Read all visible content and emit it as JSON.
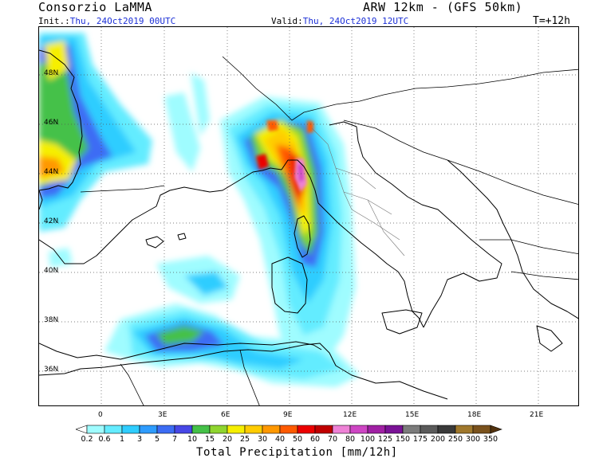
{
  "header": {
    "title_left": "Consorzio LaMMA",
    "title_right": "ARW 12km - (GFS 50km)",
    "init_prefix": "Init.:",
    "init_value": "Thu, 24Oct2019 00UTC",
    "valid_prefix": "Valid:",
    "valid_value": "Thu, 24Oct2019 12UTC",
    "step": "T=+12h"
  },
  "map": {
    "lat_labels": [
      "48N",
      "46N",
      "44N",
      "42N",
      "40N",
      "38N",
      "36N"
    ],
    "lon_labels": [
      "0",
      "3E",
      "6E",
      "9E",
      "12E",
      "15E",
      "18E",
      "21E"
    ]
  },
  "colorbar": {
    "title": "Total Precipitation [mm/12h]",
    "levels": [
      "0.2",
      "0.6",
      "1",
      "3",
      "5",
      "7",
      "10",
      "15",
      "20",
      "25",
      "30",
      "40",
      "50",
      "60",
      "70",
      "80",
      "100",
      "125",
      "150",
      "175",
      "200",
      "250",
      "300",
      "350"
    ],
    "colors": [
      "#ffffff",
      "#9ffcff",
      "#64ecff",
      "#2fcdff",
      "#2e9cfe",
      "#3c6cf4",
      "#4747e6",
      "#45c148",
      "#8fd52f",
      "#f6ef00",
      "#ffcc00",
      "#ff9800",
      "#ff5a00",
      "#ec0000",
      "#c00000",
      "#ee82d6",
      "#ce46c4",
      "#a020a4",
      "#7a1296",
      "#7c7c7c",
      "#5a5a5a",
      "#3a3a3a",
      "#a0782c",
      "#7a521c",
      "#52320e"
    ]
  }
}
